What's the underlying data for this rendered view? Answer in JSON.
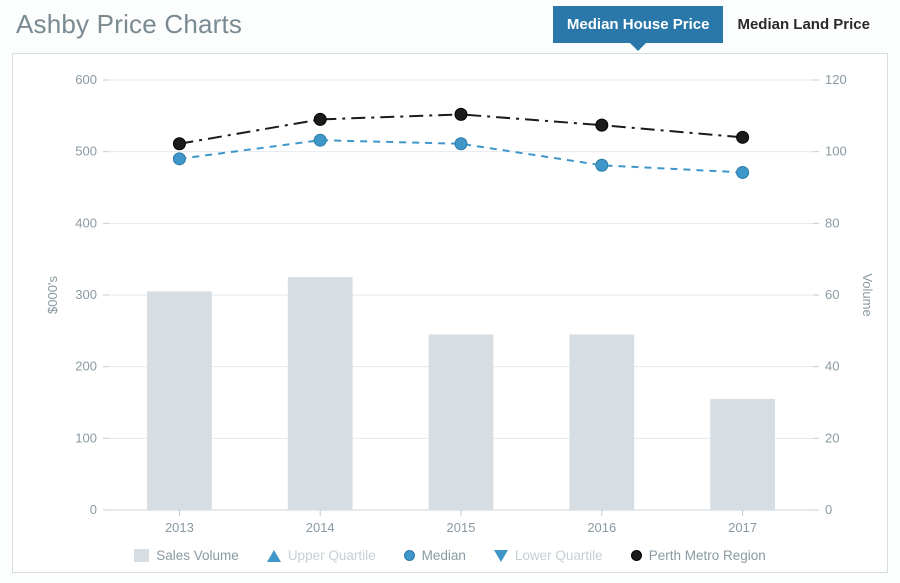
{
  "title": "Ashby Price Charts",
  "tabs": {
    "active": "Median House Price",
    "inactive": "Median Land Price"
  },
  "chart": {
    "type": "combo-bar-line-dual-axis",
    "background_color": "#ffffff",
    "frame_border_color": "#d7dde0",
    "grid_color": "#e6eaec",
    "baseline_color": "#cfd6da",
    "tick_font_size": 13,
    "tick_color": "#8a9aa2",
    "x": {
      "categories": [
        "2013",
        "2014",
        "2015",
        "2016",
        "2017"
      ]
    },
    "y_left": {
      "label": "$000's",
      "min": 0,
      "max": 600,
      "step": 100,
      "label_font_size": 13,
      "label_color": "#8a9aa2"
    },
    "y_right": {
      "label": "Volume",
      "min": 0,
      "max": 120,
      "step": 20,
      "label_font_size": 13,
      "label_color": "#8a9aa2"
    },
    "bars": {
      "name": "Sales Volume",
      "axis": "right",
      "color": "#d7dee3",
      "bar_width_ratio": 0.46,
      "values": [
        61,
        65,
        49,
        49,
        31
      ]
    },
    "lines": {
      "median": {
        "name": "Median",
        "axis": "left",
        "color": "#3f97c9",
        "stroke_width": 2,
        "dash": "7 6",
        "marker": "circle",
        "marker_size": 6,
        "marker_fill": "#3f97c9",
        "marker_stroke": "#2b7aa6",
        "values": [
          490,
          516,
          511,
          481,
          471
        ]
      },
      "perth": {
        "name": "Perth Metro Region",
        "axis": "left",
        "color": "#1b1b1b",
        "stroke_width": 2,
        "dash": "14 6 3 6",
        "marker": "circle",
        "marker_size": 6,
        "marker_fill": "#1b1b1b",
        "marker_stroke": "#000000",
        "values": [
          511,
          545,
          552,
          537,
          520
        ]
      }
    },
    "legend": {
      "items": [
        {
          "key": "sales",
          "label": "Sales Volume",
          "active": true
        },
        {
          "key": "uq",
          "label": "Upper Quartile",
          "active": false
        },
        {
          "key": "median",
          "label": "Median",
          "active": true
        },
        {
          "key": "lq",
          "label": "Lower Quartile",
          "active": false
        },
        {
          "key": "perth",
          "label": "Perth Metro Region",
          "active": true
        }
      ]
    }
  }
}
